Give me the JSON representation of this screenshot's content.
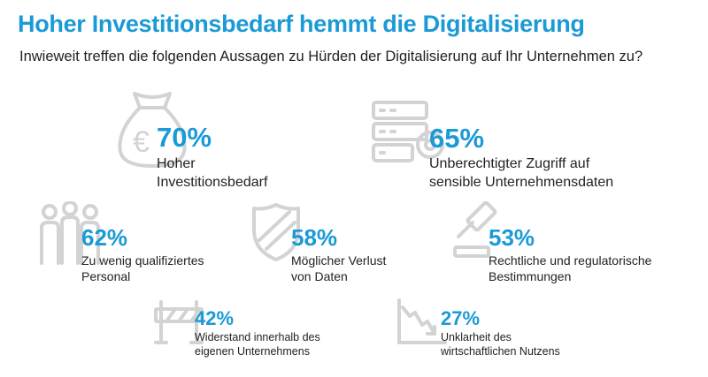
{
  "chart_data": {
    "type": "infographic",
    "title": "Hoher Investitionsbedarf hemmt die Digitalisierung",
    "subtitle": "Inwieweit treffen die folgenden Aussagen zu Hürden der Digitalisierung auf Ihr Unternehmen zu?",
    "items": [
      {
        "pct": "70%",
        "value": 70,
        "line1": "Hoher",
        "line2": "Investitionsbedarf",
        "icon": "money-bag-icon"
      },
      {
        "pct": "65%",
        "value": 65,
        "line1": "Unberechtigter Zugriff auf",
        "line2": "sensible Unternehmensdaten",
        "icon": "server-lock-icon"
      },
      {
        "pct": "62%",
        "value": 62,
        "line1": "Zu wenig qualifiziertes",
        "line2": "Personal",
        "icon": "people-icon"
      },
      {
        "pct": "58%",
        "value": 58,
        "line1": "Möglicher Verlust",
        "line2": "von Daten",
        "icon": "shield-icon"
      },
      {
        "pct": "53%",
        "value": 53,
        "line1": "Rechtliche und regulatorische",
        "line2": "Bestimmungen",
        "icon": "gavel-icon"
      },
      {
        "pct": "42%",
        "value": 42,
        "line1": "Widerstand innerhalb des",
        "line2": "eigenen Unternehmens",
        "icon": "barrier-icon"
      },
      {
        "pct": "27%",
        "value": 27,
        "line1": "Unklarheit des",
        "line2": "wirtschaftlichen Nutzens",
        "icon": "declining-chart-icon"
      }
    ],
    "colors": {
      "accent": "#1a9ad6",
      "text": "#222222",
      "icon": "#d3d3d3"
    }
  }
}
